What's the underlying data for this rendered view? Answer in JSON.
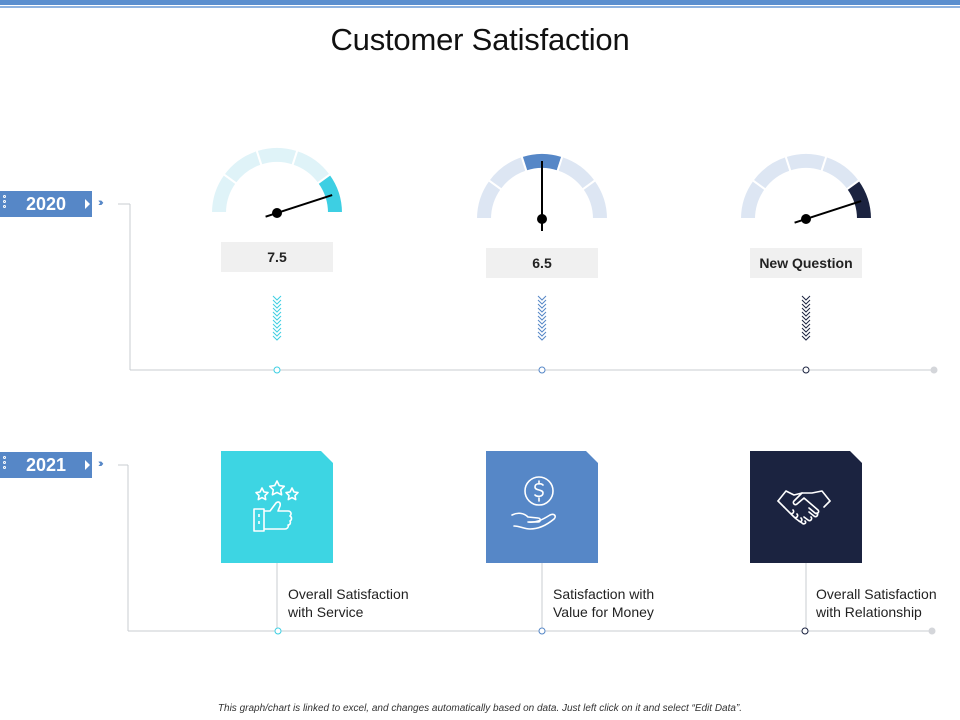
{
  "title": "Customer Satisfaction",
  "years": [
    "2020",
    "2021"
  ],
  "gauges": [
    {
      "value_label": "7.5",
      "active_segment": 4,
      "segments": 5,
      "accent": "#3dcfe3",
      "track": "#dff3f8"
    },
    {
      "value_label": "6.5",
      "active_segment": 2,
      "segments": 5,
      "accent": "#5687c7",
      "track": "#dde6f3"
    },
    {
      "value_label": "New Question",
      "active_segment": 4,
      "segments": 5,
      "accent": "#1b2340",
      "track": "#dde6f3"
    }
  ],
  "cards": [
    {
      "icon": "thumbs-up-stars-icon",
      "color": "#3dd5e3",
      "caption_line1": "Overall Satisfaction",
      "caption_line2": "with Service"
    },
    {
      "icon": "money-hand-icon",
      "color": "#5687c7",
      "caption_line1": "Satisfaction with",
      "caption_line2": "Value for Money"
    },
    {
      "icon": "handshake-icon",
      "color": "#1b2340",
      "caption_line1": "Overall Satisfaction",
      "caption_line2": "with Relationship"
    }
  ],
  "footer": "This graph/chart is linked to excel, and changes automatically based on data. Just left click on it and select “Edit Data”."
}
